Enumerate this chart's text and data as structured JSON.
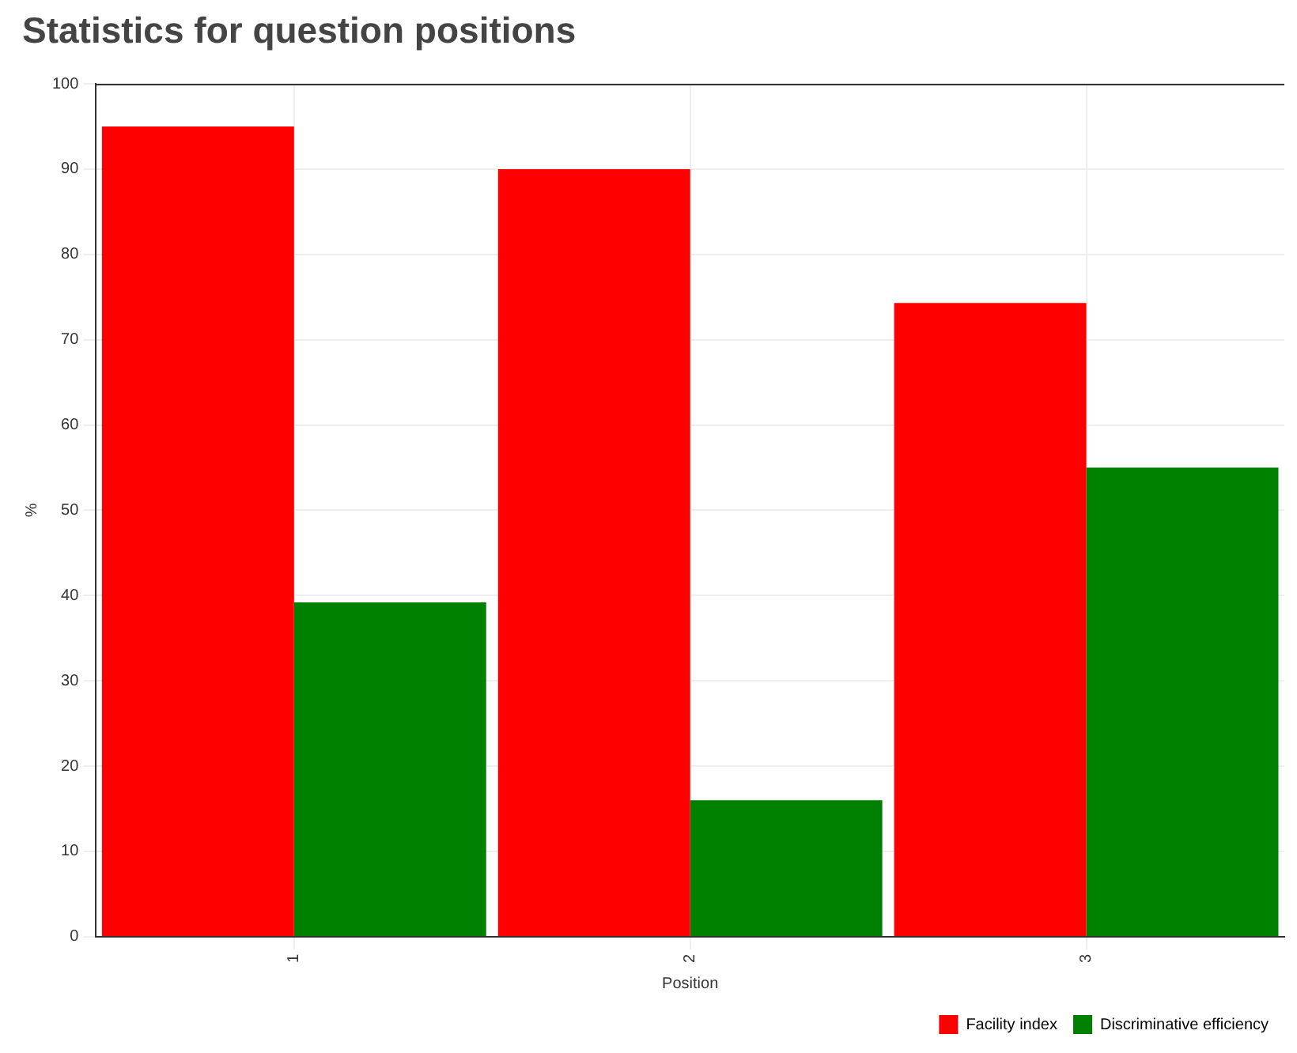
{
  "chart_data": {
    "type": "bar",
    "title": "Statistics for question positions",
    "xlabel": "Position",
    "ylabel": "%",
    "categories": [
      "1",
      "2",
      "3"
    ],
    "series": [
      {
        "name": "Facility index",
        "color": "#ff0000",
        "values": [
          95,
          90,
          74.3
        ]
      },
      {
        "name": "Discriminative efficiency",
        "color": "#008000",
        "values": [
          39.2,
          16,
          55
        ]
      }
    ],
    "ylim": [
      0,
      100
    ],
    "yticks": [
      0,
      10,
      20,
      30,
      40,
      50,
      60,
      70,
      80,
      90,
      100
    ],
    "grid": true,
    "legend": "bottom right"
  }
}
